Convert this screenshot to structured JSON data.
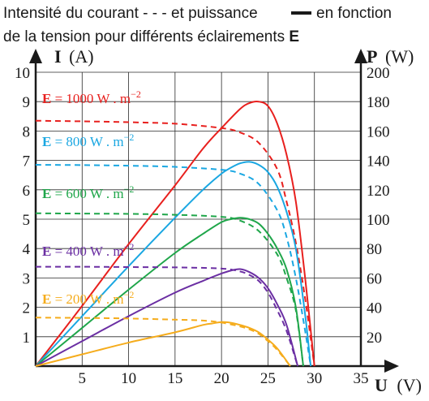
{
  "chart_data": {
    "type": "line",
    "title_line1_pre": "Intensité du courant - - - et puissance",
    "title_line1_post": "en fonction",
    "title_line2_pre": "de la tension pour différents éclairements",
    "title_line2_bold": "E",
    "xlabel_symbol": "U",
    "xlabel_unit": "(V)",
    "ylabel_left_symbol": "I",
    "ylabel_left_unit": "(A)",
    "ylabel_right_symbol": "P",
    "ylabel_right_unit": "(W)",
    "xlim": [
      0,
      35
    ],
    "ylim_left": [
      0,
      10
    ],
    "ylim_right": [
      0,
      200
    ],
    "x_ticks": [
      5,
      10,
      15,
      20,
      25,
      30,
      35
    ],
    "y_ticks_left": [
      1,
      2,
      3,
      4,
      5,
      6,
      7,
      8,
      9,
      10
    ],
    "y_ticks_right": [
      20,
      40,
      60,
      80,
      100,
      120,
      140,
      160,
      180,
      200
    ],
    "grid": true,
    "series": [
      {
        "name": "E = 1000 W . m−2",
        "label_text": "E = 1000 W . m",
        "label_sup": "−2",
        "color": "#e8201e",
        "current": {
          "U": [
            0,
            5,
            10,
            15,
            20,
            22,
            24,
            26,
            27,
            28,
            29,
            30
          ],
          "I": [
            8.35,
            8.33,
            8.3,
            8.25,
            8.1,
            7.95,
            7.6,
            6.7,
            5.6,
            4.2,
            2.3,
            0
          ]
        },
        "power": {
          "U": [
            0,
            5,
            10,
            15,
            18,
            20,
            22,
            23,
            24,
            25,
            26,
            27,
            28,
            29,
            30
          ],
          "P": [
            0,
            41,
            83,
            123,
            148,
            162,
            175,
            179,
            180,
            177,
            165,
            144,
            112,
            60,
            0
          ]
        }
      },
      {
        "name": "E = 800 W . m−2",
        "label_text": "E = 800 W . m",
        "label_sup": "−2",
        "color": "#1aa7e2",
        "current": {
          "U": [
            0,
            5,
            10,
            15,
            20,
            22,
            24,
            26,
            27,
            28,
            29,
            29.6
          ],
          "I": [
            6.85,
            6.84,
            6.82,
            6.78,
            6.68,
            6.55,
            6.2,
            5.3,
            4.4,
            3.0,
            1.2,
            0
          ]
        },
        "power": {
          "U": [
            0,
            5,
            10,
            15,
            18,
            20,
            21,
            22,
            23,
            24,
            25,
            26,
            27,
            28,
            29,
            29.6
          ],
          "P": [
            0,
            34,
            68,
            101,
            120,
            131,
            135,
            138,
            139,
            137,
            132,
            122,
            105,
            80,
            35,
            0
          ]
        }
      },
      {
        "name": "E = 600 W . m−2",
        "label_text": "E = 600 W . m",
        "label_sup": "−2",
        "color": "#1fa64a",
        "current": {
          "U": [
            0,
            5,
            10,
            15,
            20,
            22,
            24,
            26,
            27,
            28,
            28.8
          ],
          "I": [
            5.2,
            5.19,
            5.18,
            5.15,
            5.08,
            4.95,
            4.6,
            3.8,
            3.0,
            1.9,
            0
          ]
        },
        "power": {
          "U": [
            0,
            5,
            10,
            15,
            18,
            20,
            21,
            22,
            23,
            24,
            25,
            26,
            27,
            28,
            28.8
          ],
          "P": [
            0,
            26,
            52,
            77,
            90,
            98,
            100,
            101,
            100,
            97,
            90,
            80,
            66,
            40,
            0
          ]
        }
      },
      {
        "name": "E = 400 W . m−2",
        "label_text": "E = 400 W . m",
        "label_sup": "−2",
        "color": "#6b2fa3",
        "current": {
          "U": [
            0,
            5,
            10,
            15,
            20,
            22,
            23,
            24,
            25,
            26,
            27,
            28.2
          ],
          "I": [
            3.38,
            3.38,
            3.37,
            3.36,
            3.32,
            3.22,
            3.1,
            2.9,
            2.5,
            1.9,
            1.2,
            0
          ]
        },
        "power": {
          "U": [
            0,
            5,
            10,
            15,
            18,
            20,
            21,
            22,
            23,
            24,
            25,
            26,
            27,
            28.2
          ],
          "P": [
            0,
            17,
            34,
            50,
            58,
            63,
            65,
            66,
            64,
            60,
            53,
            42,
            28,
            0
          ]
        }
      },
      {
        "name": "E = 200 W . m−2",
        "label_text": "E = 200 W . m",
        "label_sup": "−2",
        "color": "#f5ac1c",
        "current": {
          "U": [
            0,
            5,
            10,
            15,
            18,
            20,
            22,
            23,
            24,
            25,
            26,
            27.4
          ],
          "I": [
            1.65,
            1.64,
            1.62,
            1.58,
            1.55,
            1.48,
            1.35,
            1.25,
            1.1,
            0.85,
            0.55,
            0
          ]
        },
        "power": {
          "U": [
            0,
            5,
            10,
            15,
            18,
            19,
            20,
            21,
            22,
            23,
            24,
            25,
            26,
            27.4
          ],
          "P": [
            0,
            8,
            16,
            23,
            28,
            29,
            30,
            29.5,
            28,
            26,
            23,
            18,
            12,
            0
          ]
        }
      }
    ]
  }
}
